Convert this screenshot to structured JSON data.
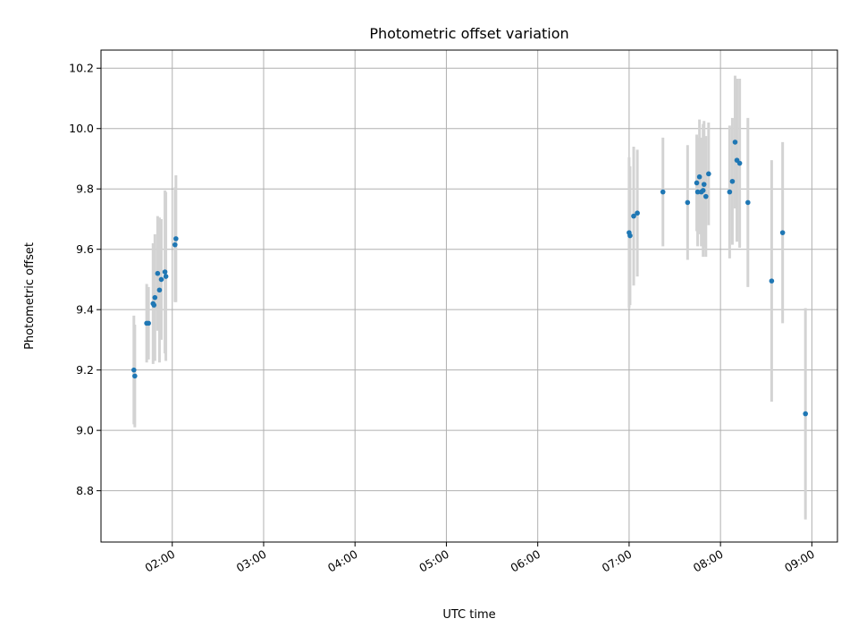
{
  "chart_data": {
    "type": "scatter",
    "title": "Photometric offset variation",
    "xlabel": "UTC time",
    "ylabel": "Photometric offset",
    "x_unit": "UTC hours",
    "xlim": [
      1.22,
      9.28
    ],
    "ylim": [
      8.63,
      10.26
    ],
    "grid": true,
    "x_ticks": [
      {
        "value": 2,
        "label": "02:00"
      },
      {
        "value": 3,
        "label": "03:00"
      },
      {
        "value": 4,
        "label": "04:00"
      },
      {
        "value": 5,
        "label": "05:00"
      },
      {
        "value": 6,
        "label": "06:00"
      },
      {
        "value": 7,
        "label": "07:00"
      },
      {
        "value": 8,
        "label": "08:00"
      },
      {
        "value": 9,
        "label": "09:00"
      }
    ],
    "y_ticks": [
      {
        "value": 8.8,
        "label": "8.8"
      },
      {
        "value": 9.0,
        "label": "9.0"
      },
      {
        "value": 9.2,
        "label": "9.2"
      },
      {
        "value": 9.4,
        "label": "9.4"
      },
      {
        "value": 9.6,
        "label": "9.6"
      },
      {
        "value": 9.8,
        "label": "9.8"
      },
      {
        "value": 10.0,
        "label": "10.0"
      },
      {
        "value": 10.2,
        "label": "10.2"
      }
    ],
    "colors": {
      "point": "#1f77b4",
      "error_bar": "#d3d3d3",
      "grid": "#b0b0b0"
    },
    "points": [
      {
        "x": 1.58,
        "y": 9.2,
        "err": 0.18
      },
      {
        "x": 1.59,
        "y": 9.18,
        "err": 0.17
      },
      {
        "x": 1.72,
        "y": 9.355,
        "err": 0.13
      },
      {
        "x": 1.74,
        "y": 9.355,
        "err": 0.12
      },
      {
        "x": 1.79,
        "y": 9.42,
        "err": 0.2
      },
      {
        "x": 1.8,
        "y": 9.415,
        "err": 0.17
      },
      {
        "x": 1.81,
        "y": 9.44,
        "err": 0.21
      },
      {
        "x": 1.84,
        "y": 9.52,
        "err": 0.19
      },
      {
        "x": 1.86,
        "y": 9.465,
        "err": 0.24
      },
      {
        "x": 1.88,
        "y": 9.5,
        "err": 0.2
      },
      {
        "x": 1.92,
        "y": 9.525,
        "err": 0.27
      },
      {
        "x": 1.93,
        "y": 9.51,
        "err": 0.28
      },
      {
        "x": 2.03,
        "y": 9.615,
        "err": 0.19
      },
      {
        "x": 2.04,
        "y": 9.635,
        "err": 0.21
      },
      {
        "x": 7.0,
        "y": 9.655,
        "err": 0.25
      },
      {
        "x": 7.01,
        "y": 9.645,
        "err": 0.23
      },
      {
        "x": 7.05,
        "y": 9.71,
        "err": 0.23
      },
      {
        "x": 7.09,
        "y": 9.72,
        "err": 0.21
      },
      {
        "x": 7.37,
        "y": 9.79,
        "err": 0.18
      },
      {
        "x": 7.64,
        "y": 9.755,
        "err": 0.19
      },
      {
        "x": 7.74,
        "y": 9.82,
        "err": 0.16
      },
      {
        "x": 7.75,
        "y": 9.79,
        "err": 0.18
      },
      {
        "x": 7.77,
        "y": 9.84,
        "err": 0.19
      },
      {
        "x": 7.79,
        "y": 9.79,
        "err": 0.18
      },
      {
        "x": 7.81,
        "y": 9.795,
        "err": 0.22
      },
      {
        "x": 7.82,
        "y": 9.815,
        "err": 0.21
      },
      {
        "x": 7.84,
        "y": 9.775,
        "err": 0.2
      },
      {
        "x": 7.87,
        "y": 9.85,
        "err": 0.17
      },
      {
        "x": 8.1,
        "y": 9.79,
        "err": 0.22
      },
      {
        "x": 8.13,
        "y": 9.825,
        "err": 0.21
      },
      {
        "x": 8.16,
        "y": 9.955,
        "err": 0.22
      },
      {
        "x": 8.18,
        "y": 9.895,
        "err": 0.27
      },
      {
        "x": 8.21,
        "y": 9.885,
        "err": 0.28
      },
      {
        "x": 8.3,
        "y": 9.755,
        "err": 0.28
      },
      {
        "x": 8.56,
        "y": 9.495,
        "err": 0.4
      },
      {
        "x": 8.68,
        "y": 9.655,
        "err": 0.3
      },
      {
        "x": 8.93,
        "y": 9.055,
        "err": 0.35
      }
    ]
  }
}
